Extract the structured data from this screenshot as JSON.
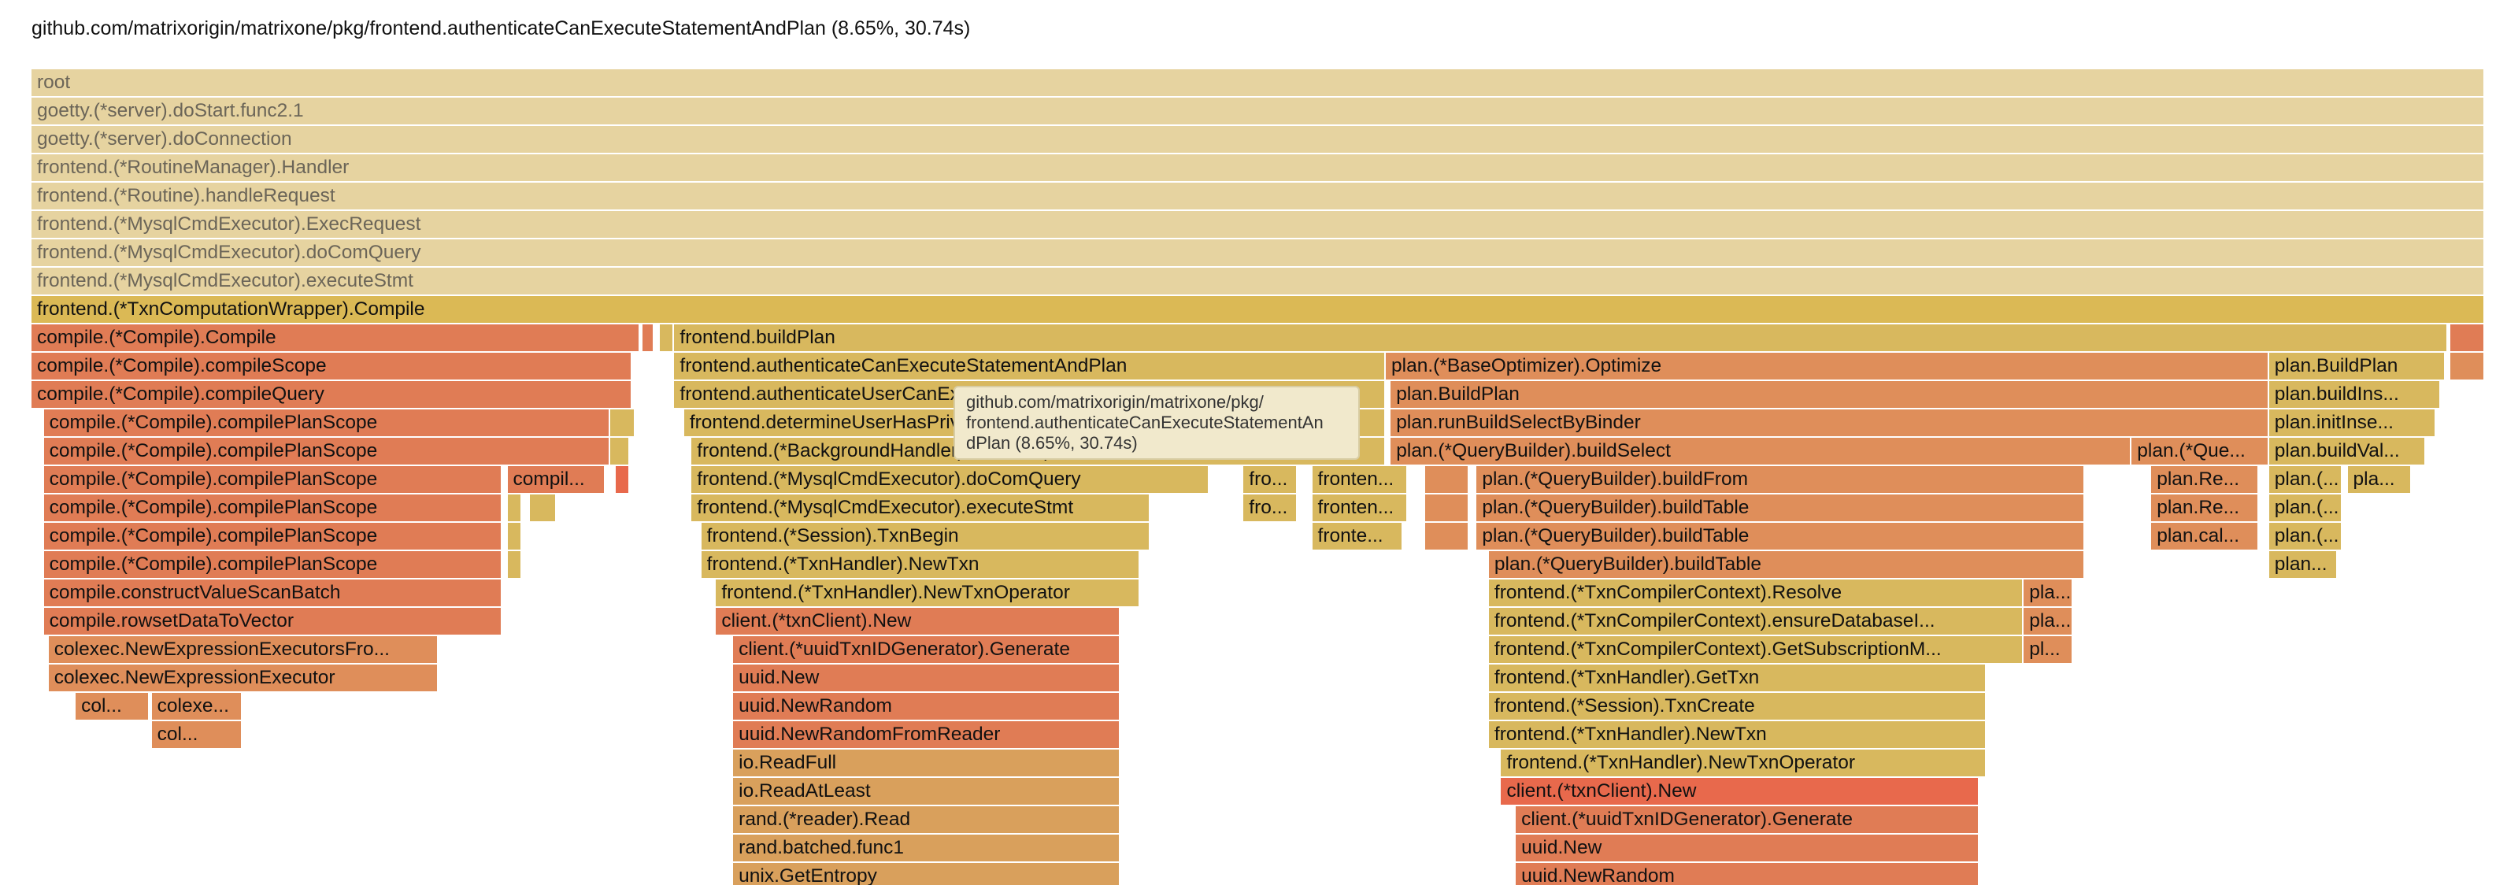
{
  "header": {
    "title": "github.com/matrixorigin/matrixone/pkg/frontend.authenticateCanExecuteStatementAndPlan (8.65%, 30.74s)"
  },
  "tooltip": {
    "lines": [
      "github.com/matrixorigin/matrixone/pkg/",
      "frontend.authenticateCanExecuteStatementAn",
      "dPlan (8.65%, 30.74s)"
    ]
  },
  "colors": {
    "ancestor": "#e6d3a0",
    "selected": "#dbb955",
    "yellow": "#d8b85e",
    "tan": "#d9a05c",
    "orange": "#df8e5a",
    "coral": "#e07c55",
    "red": "#e8694c",
    "title_text": "#111111"
  },
  "frames": [
    {
      "d": 0,
      "s": 0,
      "e": 100,
      "label": "root",
      "c": "ancestor"
    },
    {
      "d": 1,
      "s": 0,
      "e": 100,
      "label": "goetty.(*server).doStart.func2.1",
      "c": "ancestor"
    },
    {
      "d": 2,
      "s": 0,
      "e": 100,
      "label": "goetty.(*server).doConnection",
      "c": "ancestor"
    },
    {
      "d": 3,
      "s": 0,
      "e": 100,
      "label": "frontend.(*RoutineManager).Handler",
      "c": "ancestor"
    },
    {
      "d": 4,
      "s": 0,
      "e": 100,
      "label": "frontend.(*Routine).handleRequest",
      "c": "ancestor"
    },
    {
      "d": 5,
      "s": 0,
      "e": 100,
      "label": "frontend.(*MysqlCmdExecutor).ExecRequest",
      "c": "ancestor"
    },
    {
      "d": 6,
      "s": 0,
      "e": 100,
      "label": "frontend.(*MysqlCmdExecutor).doComQuery",
      "c": "ancestor"
    },
    {
      "d": 7,
      "s": 0,
      "e": 100,
      "label": "frontend.(*MysqlCmdExecutor).executeStmt",
      "c": "ancestor"
    },
    {
      "d": 8,
      "s": 0,
      "e": 100,
      "label": "frontend.(*TxnComputationWrapper).Compile",
      "c": "selected"
    },
    {
      "d": 9,
      "s": 0,
      "e": 24.8,
      "label": "compile.(*Compile).Compile",
      "c": "coral"
    },
    {
      "d": 9,
      "s": 24.9,
      "e": 25.4,
      "label": "",
      "c": "coral"
    },
    {
      "d": 9,
      "s": 25.6,
      "e": 26.2,
      "label": "",
      "c": "yellow"
    },
    {
      "d": 9,
      "s": 26.2,
      "e": 98.5,
      "label": "frontend.buildPlan",
      "c": "yellow"
    },
    {
      "d": 9,
      "s": 98.6,
      "e": 100,
      "label": "",
      "c": "coral"
    },
    {
      "d": 10,
      "s": 0,
      "e": 24.5,
      "label": "compile.(*Compile).compileScope",
      "c": "coral"
    },
    {
      "d": 10,
      "s": 26.2,
      "e": 55.2,
      "label": "frontend.authenticateCanExecuteStatementAndPlan",
      "c": "yellow"
    },
    {
      "d": 10,
      "s": 55.2,
      "e": 91.2,
      "label": "plan.(*BaseOptimizer).Optimize",
      "c": "orange"
    },
    {
      "d": 10,
      "s": 91.2,
      "e": 98.4,
      "label": "plan.BuildPlan",
      "c": "yellow"
    },
    {
      "d": 10,
      "s": 98.6,
      "e": 100,
      "label": "",
      "c": "orange"
    },
    {
      "d": 11,
      "s": 0,
      "e": 24.5,
      "label": "compile.(*Compile).compileQuery",
      "c": "coral"
    },
    {
      "d": 11,
      "s": 26.2,
      "e": 55.2,
      "label": "frontend.authenticateUserCanExecuteStatementWithObjectTypeDatabaseAn...",
      "c": "yellow"
    },
    {
      "d": 11,
      "s": 55.4,
      "e": 91.2,
      "label": "plan.BuildPlan",
      "c": "orange"
    },
    {
      "d": 11,
      "s": 91.2,
      "e": 98.2,
      "label": "plan.buildIns...",
      "c": "yellow"
    },
    {
      "d": 12,
      "s": 0.5,
      "e": 23.6,
      "label": "compile.(*Compile).compilePlanScope",
      "c": "coral"
    },
    {
      "d": 12,
      "s": 23.6,
      "e": 24.6,
      "label": "",
      "c": "yellow"
    },
    {
      "d": 12,
      "s": 26.6,
      "e": 55.2,
      "label": "frontend.determineUserHasPrivilegeSet",
      "c": "yellow"
    },
    {
      "d": 12,
      "s": 55.4,
      "e": 91.2,
      "label": "plan.runBuildSelectByBinder",
      "c": "orange"
    },
    {
      "d": 12,
      "s": 91.2,
      "e": 98.0,
      "label": "plan.initInse...",
      "c": "yellow"
    },
    {
      "d": 13,
      "s": 0.5,
      "e": 23.6,
      "label": "compile.(*Compile).compilePlanScope",
      "c": "coral"
    },
    {
      "d": 13,
      "s": 23.6,
      "e": 24.4,
      "label": "",
      "c": "yellow"
    },
    {
      "d": 13,
      "s": 26.9,
      "e": 55.2,
      "label": "frontend.(*BackgroundHandler).ExecRequest",
      "c": "yellow"
    },
    {
      "d": 13,
      "s": 55.4,
      "e": 85.6,
      "label": "plan.(*QueryBuilder).buildSelect",
      "c": "orange"
    },
    {
      "d": 13,
      "s": 85.6,
      "e": 91.2,
      "label": "plan.(*Que...",
      "c": "orange"
    },
    {
      "d": 13,
      "s": 91.2,
      "e": 97.6,
      "label": "plan.buildVal...",
      "c": "yellow"
    },
    {
      "d": 14,
      "s": 0.5,
      "e": 19.2,
      "label": "compile.(*Compile).compilePlanScope",
      "c": "coral"
    },
    {
      "d": 14,
      "s": 19.4,
      "e": 23.4,
      "label": "compil...",
      "c": "coral"
    },
    {
      "d": 14,
      "s": 23.8,
      "e": 24.4,
      "label": "",
      "c": "red"
    },
    {
      "d": 14,
      "s": 26.9,
      "e": 48.0,
      "label": "frontend.(*MysqlCmdExecutor).doComQuery",
      "c": "yellow"
    },
    {
      "d": 14,
      "s": 49.4,
      "e": 51.6,
      "label": "fro...",
      "c": "yellow"
    },
    {
      "d": 14,
      "s": 52.2,
      "e": 56.1,
      "label": "fronten...",
      "c": "yellow"
    },
    {
      "d": 14,
      "s": 56.8,
      "e": 58.6,
      "label": "",
      "c": "orange"
    },
    {
      "d": 14,
      "s": 58.9,
      "e": 83.7,
      "label": "plan.(*QueryBuilder).buildFrom",
      "c": "orange"
    },
    {
      "d": 14,
      "s": 86.4,
      "e": 90.8,
      "label": "plan.Re...",
      "c": "orange"
    },
    {
      "d": 14,
      "s": 91.2,
      "e": 94.2,
      "label": "plan.(...",
      "c": "yellow"
    },
    {
      "d": 14,
      "s": 94.4,
      "e": 97.0,
      "label": "pla...",
      "c": "yellow"
    },
    {
      "d": 15,
      "s": 0.5,
      "e": 19.2,
      "label": "compile.(*Compile).compilePlanScope",
      "c": "coral"
    },
    {
      "d": 15,
      "s": 19.4,
      "e": 20.0,
      "label": "",
      "c": "yellow"
    },
    {
      "d": 15,
      "s": 20.3,
      "e": 21.4,
      "label": "",
      "c": "yellow"
    },
    {
      "d": 15,
      "s": 26.9,
      "e": 45.6,
      "label": "frontend.(*MysqlCmdExecutor).executeStmt",
      "c": "yellow"
    },
    {
      "d": 15,
      "s": 49.4,
      "e": 51.6,
      "label": "fro...",
      "c": "yellow"
    },
    {
      "d": 15,
      "s": 52.2,
      "e": 56.1,
      "label": "fronten...",
      "c": "yellow"
    },
    {
      "d": 15,
      "s": 56.8,
      "e": 58.6,
      "label": "",
      "c": "orange"
    },
    {
      "d": 15,
      "s": 58.9,
      "e": 83.7,
      "label": "plan.(*QueryBuilder).buildTable",
      "c": "orange"
    },
    {
      "d": 15,
      "s": 86.4,
      "e": 90.8,
      "label": "plan.Re...",
      "c": "orange"
    },
    {
      "d": 15,
      "s": 91.2,
      "e": 94.2,
      "label": "plan.(...",
      "c": "yellow"
    },
    {
      "d": 16,
      "s": 0.5,
      "e": 19.2,
      "label": "compile.(*Compile).compilePlanScope",
      "c": "coral"
    },
    {
      "d": 16,
      "s": 19.4,
      "e": 20.0,
      "label": "",
      "c": "yellow"
    },
    {
      "d": 16,
      "s": 27.3,
      "e": 45.6,
      "label": "frontend.(*Session).TxnBegin",
      "c": "yellow"
    },
    {
      "d": 16,
      "s": 52.2,
      "e": 55.9,
      "label": "fronte...",
      "c": "yellow"
    },
    {
      "d": 16,
      "s": 56.8,
      "e": 58.6,
      "label": "",
      "c": "orange"
    },
    {
      "d": 16,
      "s": 58.9,
      "e": 83.7,
      "label": "plan.(*QueryBuilder).buildTable",
      "c": "orange"
    },
    {
      "d": 16,
      "s": 86.4,
      "e": 90.8,
      "label": "plan.cal...",
      "c": "orange"
    },
    {
      "d": 16,
      "s": 91.2,
      "e": 94.2,
      "label": "plan.(...",
      "c": "yellow"
    },
    {
      "d": 17,
      "s": 0.5,
      "e": 19.2,
      "label": "compile.(*Compile).compilePlanScope",
      "c": "coral"
    },
    {
      "d": 17,
      "s": 19.4,
      "e": 20.0,
      "label": "",
      "c": "yellow"
    },
    {
      "d": 17,
      "s": 27.3,
      "e": 45.2,
      "label": "frontend.(*TxnHandler).NewTxn",
      "c": "yellow"
    },
    {
      "d": 17,
      "s": 59.4,
      "e": 83.7,
      "label": "plan.(*QueryBuilder).buildTable",
      "c": "orange"
    },
    {
      "d": 17,
      "s": 91.2,
      "e": 94.0,
      "label": "plan...",
      "c": "yellow"
    },
    {
      "d": 18,
      "s": 0.5,
      "e": 19.2,
      "label": "compile.constructValueScanBatch",
      "c": "coral"
    },
    {
      "d": 18,
      "s": 27.9,
      "e": 45.2,
      "label": "frontend.(*TxnHandler).NewTxnOperator",
      "c": "yellow"
    },
    {
      "d": 18,
      "s": 59.4,
      "e": 81.2,
      "label": "frontend.(*TxnCompilerContext).Resolve",
      "c": "yellow"
    },
    {
      "d": 18,
      "s": 81.2,
      "e": 83.2,
      "label": "pla...",
      "c": "orange"
    },
    {
      "d": 19,
      "s": 0.5,
      "e": 19.2,
      "label": "compile.rowsetDataToVector",
      "c": "coral"
    },
    {
      "d": 19,
      "s": 27.9,
      "e": 44.4,
      "label": "client.(*txnClient).New",
      "c": "coral"
    },
    {
      "d": 19,
      "s": 59.4,
      "e": 81.2,
      "label": "frontend.(*TxnCompilerContext).ensureDatabaseI...",
      "c": "yellow"
    },
    {
      "d": 19,
      "s": 81.2,
      "e": 83.2,
      "label": "pla...",
      "c": "orange"
    },
    {
      "d": 20,
      "s": 0.7,
      "e": 16.6,
      "label": "colexec.NewExpressionExecutorsFro...",
      "c": "orange"
    },
    {
      "d": 20,
      "s": 28.6,
      "e": 44.4,
      "label": "client.(*uuidTxnIDGenerator).Generate",
      "c": "coral"
    },
    {
      "d": 20,
      "s": 59.4,
      "e": 81.2,
      "label": "frontend.(*TxnCompilerContext).GetSubscriptionM...",
      "c": "yellow"
    },
    {
      "d": 20,
      "s": 81.2,
      "e": 83.2,
      "label": "pl...",
      "c": "orange"
    },
    {
      "d": 21,
      "s": 0.7,
      "e": 16.6,
      "label": "colexec.NewExpressionExecutor",
      "c": "orange"
    },
    {
      "d": 21,
      "s": 28.6,
      "e": 44.4,
      "label": "uuid.New",
      "c": "coral"
    },
    {
      "d": 21,
      "s": 59.4,
      "e": 79.7,
      "label": "frontend.(*TxnHandler).GetTxn",
      "c": "yellow"
    },
    {
      "d": 22,
      "s": 1.8,
      "e": 4.8,
      "label": "col...",
      "c": "orange"
    },
    {
      "d": 22,
      "s": 4.9,
      "e": 8.6,
      "label": "colexe...",
      "c": "orange"
    },
    {
      "d": 22,
      "s": 28.6,
      "e": 44.4,
      "label": "uuid.NewRandom",
      "c": "coral"
    },
    {
      "d": 22,
      "s": 59.4,
      "e": 79.7,
      "label": "frontend.(*Session).TxnCreate",
      "c": "yellow"
    },
    {
      "d": 23,
      "s": 4.9,
      "e": 8.6,
      "label": "col...",
      "c": "orange"
    },
    {
      "d": 23,
      "s": 28.6,
      "e": 44.4,
      "label": "uuid.NewRandomFromReader",
      "c": "coral"
    },
    {
      "d": 23,
      "s": 59.4,
      "e": 79.7,
      "label": "frontend.(*TxnHandler).NewTxn",
      "c": "yellow"
    },
    {
      "d": 24,
      "s": 28.6,
      "e": 44.4,
      "label": "io.ReadFull",
      "c": "tan"
    },
    {
      "d": 24,
      "s": 59.9,
      "e": 79.7,
      "label": "frontend.(*TxnHandler).NewTxnOperator",
      "c": "yellow"
    },
    {
      "d": 25,
      "s": 28.6,
      "e": 44.4,
      "label": "io.ReadAtLeast",
      "c": "tan"
    },
    {
      "d": 25,
      "s": 59.9,
      "e": 79.4,
      "label": "client.(*txnClient).New",
      "c": "red"
    },
    {
      "d": 26,
      "s": 28.6,
      "e": 44.4,
      "label": "rand.(*reader).Read",
      "c": "tan"
    },
    {
      "d": 26,
      "s": 60.5,
      "e": 79.4,
      "label": "client.(*uuidTxnIDGenerator).Generate",
      "c": "coral"
    },
    {
      "d": 27,
      "s": 28.6,
      "e": 44.4,
      "label": "rand.batched.func1",
      "c": "tan"
    },
    {
      "d": 27,
      "s": 60.5,
      "e": 79.4,
      "label": "uuid.New",
      "c": "coral"
    },
    {
      "d": 28,
      "s": 28.6,
      "e": 44.4,
      "label": "unix.GetEntropy",
      "c": "tan"
    },
    {
      "d": 28,
      "s": 60.5,
      "e": 79.4,
      "label": "uuid.NewRandom",
      "c": "coral"
    }
  ]
}
